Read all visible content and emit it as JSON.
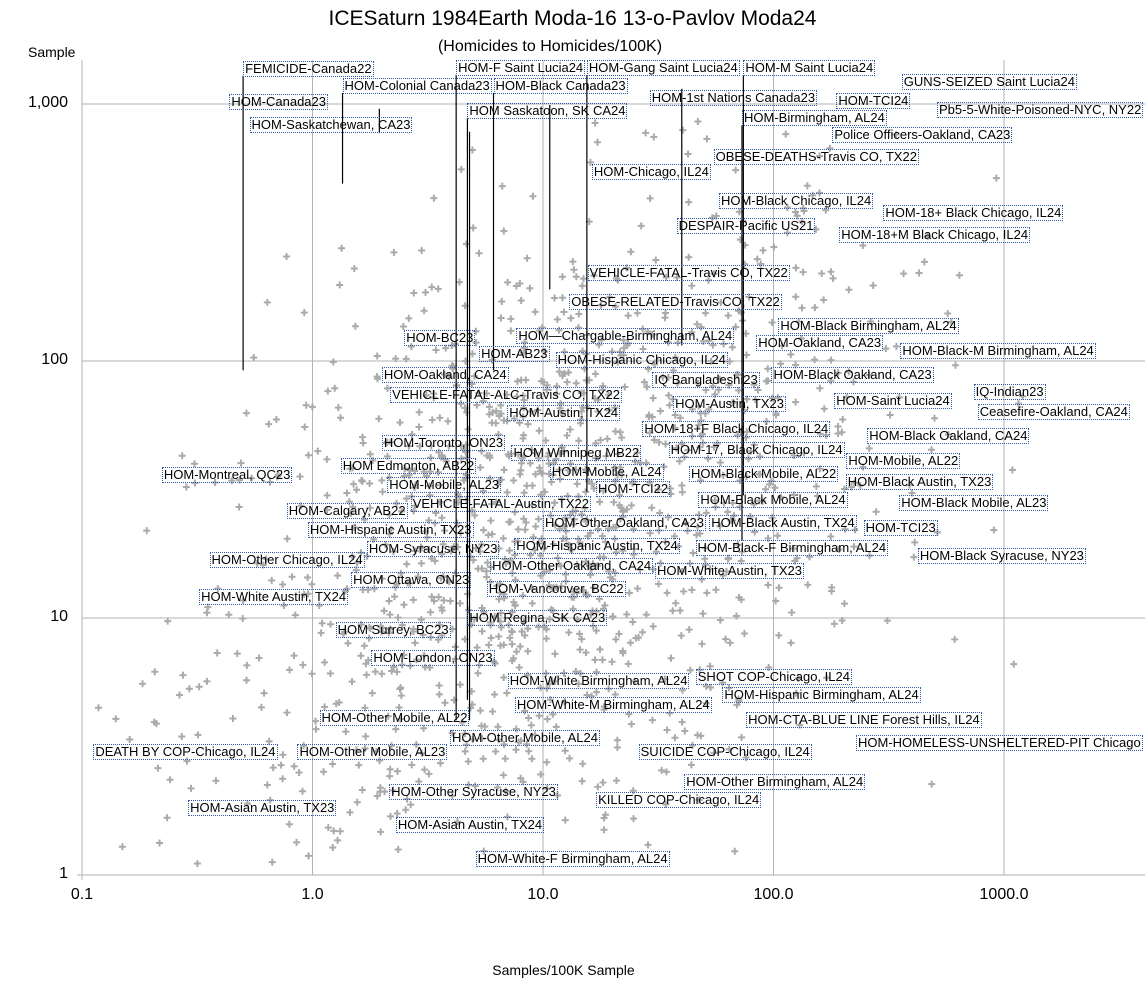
{
  "chart_data": {
    "type": "scatter",
    "title": "ICESaturn 1984Earth Moda-16 13-o-Pavlov Moda24",
    "subtitle": "(Homicides to Homicides/100K)",
    "xlabel": "Samples/100K Sample",
    "ylabel": "Sample",
    "x_scale": "log",
    "y_scale": "log",
    "xlim": [
      0.1,
      1000
    ],
    "ylim": [
      1,
      1000
    ],
    "grid": true,
    "marker": "plus",
    "colors": {
      "points": "#aaaaaa",
      "grid": "#b3b3b3",
      "label_border": "#2d5da8",
      "leader": "#000000"
    },
    "x_ticks": [
      {
        "v": 0.1,
        "t": "0.1"
      },
      {
        "v": 1,
        "t": "1.0"
      },
      {
        "v": 10,
        "t": "10.0"
      },
      {
        "v": 100,
        "t": "100.0"
      },
      {
        "v": 1000,
        "t": "1000.0"
      }
    ],
    "y_ticks": [
      {
        "v": 1,
        "t": "1"
      },
      {
        "v": 10,
        "t": "10"
      },
      {
        "v": 100,
        "t": "100"
      },
      {
        "v": 1000,
        "t": "1,000"
      }
    ],
    "labeled_points": [
      {
        "t": "FEMICIDE-Canada22",
        "x": 0.5,
        "y": 1370,
        "leader_to": 92
      },
      {
        "t": "HOM-Colonial Canada23",
        "x": 1.35,
        "y": 1175,
        "leader_to": 490
      },
      {
        "t": "HOM-Canada23",
        "x": 1.95,
        "y": 1020,
        "leader_to": 770
      },
      {
        "t": "HOM-F Saint Lucia24",
        "x": 4.2,
        "y": 1380,
        "leader_to": 4.0
      },
      {
        "t": "HOM-Gang Saint Lucia24",
        "x": 15.5,
        "y": 1380,
        "leader_to": 31
      },
      {
        "t": "HOM-M Saint Lucia24",
        "x": 74,
        "y": 1380,
        "leader_to": 30
      },
      {
        "t": "GUNS-SEIZED Saint Lucia24",
        "x": 40,
        "y": 1220,
        "leader_to": 115
      },
      {
        "t": "HOM-Black Canada23",
        "x": 6.1,
        "y": 1175,
        "leader_to": 92
      },
      {
        "t": "HOM-1st Nations Canada23",
        "x": 10.7,
        "y": 1055,
        "leader_to": 190
      },
      {
        "t": "HOM Saskatoon, SK CA24",
        "x": 4.7,
        "y": 940,
        "leader_to": 4.8
      },
      {
        "t": "HOM-Saskatchewan, CA23",
        "x": 4.8,
        "y": 830,
        "leader_to": 4.0
      },
      {
        "t": "HOM-TCI24",
        "x": 69,
        "y": 1027
      },
      {
        "t": "HOM-Birmingham, AL24",
        "x": 73,
        "y": 880,
        "leader_to": 20
      },
      {
        "t": "Pb5-5-White-Poisoned-NYC, NY22",
        "x": 545,
        "y": 950
      },
      {
        "t": "Police Officers-Oakland, CA23",
        "x": 180,
        "y": 755
      },
      {
        "t": "OBESE-DEATHS-Travis CO, TX22",
        "x": 55,
        "y": 620
      },
      {
        "t": "HOM-Chicago, IL24",
        "x": 22,
        "y": 545
      },
      {
        "t": "HOM-Black Chicago, IL24",
        "x": 58,
        "y": 420
      },
      {
        "t": "HOM-18+ Black Chicago, IL24",
        "x": 67,
        "y": 375
      },
      {
        "t": "DESPAIR-Pacific US21",
        "x": 38,
        "y": 335
      },
      {
        "t": "HOM-18+M Black Chicago, IL24",
        "x": 143,
        "y": 310
      },
      {
        "t": "VEHICLE-FATAL-Travis CO, TX22",
        "x": 15.6,
        "y": 220
      },
      {
        "t": "OBESE-RELATED-Travis CO, TX22",
        "x": 13,
        "y": 170
      },
      {
        "t": "HOM-BC23",
        "x": 2.5,
        "y": 123
      },
      {
        "t": "HOM-AB23",
        "x": 2.9,
        "y": 106
      },
      {
        "t": "HOM-Black Birmingham, AL24",
        "x": 105,
        "y": 137
      },
      {
        "t": "HOM—Chargable-Birmingham, AL24",
        "x": 69,
        "y": 125
      },
      {
        "t": "HOM-Oakland, CA23",
        "x": 31,
        "y": 117
      },
      {
        "t": "HOM-Hispanic Chicago, IL24",
        "x": 15.3,
        "y": 108
      },
      {
        "t": "HOM-Black-M Birmingham, AL24",
        "x": 195,
        "y": 109
      },
      {
        "t": "HOM-Black Oakland, CA23",
        "x": 98,
        "y": 95
      },
      {
        "t": "HOM-Oakland, CA24",
        "x": 18,
        "y": 88
      },
      {
        "t": "IQ Bangladeshi23",
        "x": 81,
        "y": 84
      },
      {
        "t": "VEHICLE-FATAL-ALC-Travis CO, TX22",
        "x": 5.9,
        "y": 79
      },
      {
        "t": "IQ-Indian23",
        "x": 82,
        "y": 76
      },
      {
        "t": "HOM-Austin, TX23",
        "x": 8.2,
        "y": 73
      },
      {
        "t": "HOM-Saint Lucia24",
        "x": 41,
        "y": 70
      },
      {
        "t": "Ceasefire-Oakland, CA24",
        "x": 570,
        "y": 68
      },
      {
        "t": "HOM-Austin, TX24",
        "x": 7.0,
        "y": 63
      },
      {
        "t": "HOM-18+F Black Chicago, IL24",
        "x": 20,
        "y": 63
      },
      {
        "t": "HOM-Black Oakland, CA24",
        "x": 57,
        "y": 55
      },
      {
        "t": "HOM-Toronto, ON23",
        "x": 2.0,
        "y": 48
      },
      {
        "t": "HOM Winnipeg MB22",
        "x": 7.3,
        "y": 47
      },
      {
        "t": "HOM-17, Black Chicago, IL24",
        "x": 26,
        "y": 45
      },
      {
        "t": "HOM-Mobile, AL22",
        "x": 23,
        "y": 41
      },
      {
        "t": "HOM-Black Mobile, AL22",
        "x": 43,
        "y": 42
      },
      {
        "t": "HOM Edmonton, AB22",
        "x": 3.6,
        "y": 39
      },
      {
        "t": "HOM-Black Austin, TX23",
        "x": 46,
        "y": 39
      },
      {
        "t": "HOM-Mobile, AL24",
        "x": 19.5,
        "y": 37
      },
      {
        "t": "HOM-Montreal, QC23",
        "x": 2.0,
        "y": 36
      },
      {
        "t": "HOM-TCI22",
        "x": 76,
        "y": 34
      },
      {
        "t": "HOM-Mobile, AL23",
        "x": 19,
        "y": 33
      },
      {
        "t": "VEHICLE-FATAL-Austin, TX22",
        "x": 3.6,
        "y": 32
      },
      {
        "t": "HOM-Black Mobile, AL24",
        "x": 35,
        "y": 31
      },
      {
        "t": "HOM-Black Mobile, AL23",
        "x": 39,
        "y": 30
      },
      {
        "t": "HOM-Other Oakland, CA23",
        "x": 10,
        "y": 29
      },
      {
        "t": "HOM-Black Austin, TX24",
        "x": 39,
        "y": 27
      },
      {
        "t": "HOM-Calgary, AB22",
        "x": 2.1,
        "y": 26
      },
      {
        "t": "HOM-Hispanic Austin, TX23",
        "x": 8.6,
        "y": 25.5
      },
      {
        "t": "HOM-TCI23",
        "x": 55,
        "y": 24
      },
      {
        "t": "HOM-Hispanic Austin, TX24",
        "x": 7.5,
        "y": 22
      },
      {
        "t": "HOM-Black-F Birmingham, AL24",
        "x": 34,
        "y": 21.6
      },
      {
        "t": "HOM-Syracuse, NY23",
        "x": 15.5,
        "y": 20
      },
      {
        "t": "HOM-Other Oakland, CA24",
        "x": 5.9,
        "y": 18.4
      },
      {
        "t": "HOM-Black Syracuse, NY23",
        "x": 47,
        "y": 17.4
      },
      {
        "t": "HOM-Other Chicago, IL24",
        "x": 1.6,
        "y": 16.8
      },
      {
        "t": "HOM-White Austin, TX23",
        "x": 3.4,
        "y": 15.3
      },
      {
        "t": "HOM Ottawa, ON23",
        "x": 1.47,
        "y": 14.0
      },
      {
        "t": "HOM-Vancouver, BC22",
        "x": 2.1,
        "y": 13.0
      },
      {
        "t": "HOM-White Austin, TX24",
        "x": 2.9,
        "y": 12.1
      },
      {
        "t": "HOM Regina, SK CA23",
        "x": 4.7,
        "y": 10
      },
      {
        "t": "HOM Surrey, BC23",
        "x": 1.7,
        "y": 9
      },
      {
        "t": "HOM-London, ON23",
        "x": 1.8,
        "y": 7
      },
      {
        "t": "SHOT COP-Chicago, IL24",
        "x": 46,
        "y": 5.9
      },
      {
        "t": "HOM-White Birmingham, AL24",
        "x": 12.8,
        "y": 5.7
      },
      {
        "t": "HOM-Hispanic Birmingham, AL24",
        "x": 60,
        "y": 5.0
      },
      {
        "t": "HOM-White-M Birmingham, AL24",
        "x": 20.5,
        "y": 4.6
      },
      {
        "t": "HOM-Other Mobile, AL22",
        "x": 4.8,
        "y": 4.1
      },
      {
        "t": "HOM-CTA-BLUE LINE Forest Hills, IL24",
        "x": 28,
        "y": 4.0
      },
      {
        "t": "HOM-HOMELESS-UNSHELTERED-PIT Chicago",
        "x": 265,
        "y": 3.5
      },
      {
        "t": "HOM-Other Mobile, AL24",
        "x": 3.95,
        "y": 3.4
      },
      {
        "t": "DEATH BY COP-Chicago, IL24",
        "x": 0.112,
        "y": 3.0
      },
      {
        "t": "HOM-Other Mobile, AL23",
        "x": 3.85,
        "y": 3.0
      },
      {
        "t": "SUICIDE COP-Chicago, IL24",
        "x": 26,
        "y": 3.0
      },
      {
        "t": "HOM-Other Birmingham, AL24",
        "x": 41,
        "y": 2.3
      },
      {
        "t": "HOM-Other Syracuse, NY23",
        "x": 2.15,
        "y": 2.1
      },
      {
        "t": "KILLED COP-Chicago, IL24",
        "x": 17,
        "y": 1.96
      },
      {
        "t": "HOM-Asian Austin, TX23",
        "x": 2.6,
        "y": 1.82
      },
      {
        "t": "HOM-Asian Austin, TX24",
        "x": 2.3,
        "y": 1.56
      },
      {
        "t": "HOM-White-F Birmingham, AL24",
        "x": 5.1,
        "y": 1.15
      }
    ]
  }
}
